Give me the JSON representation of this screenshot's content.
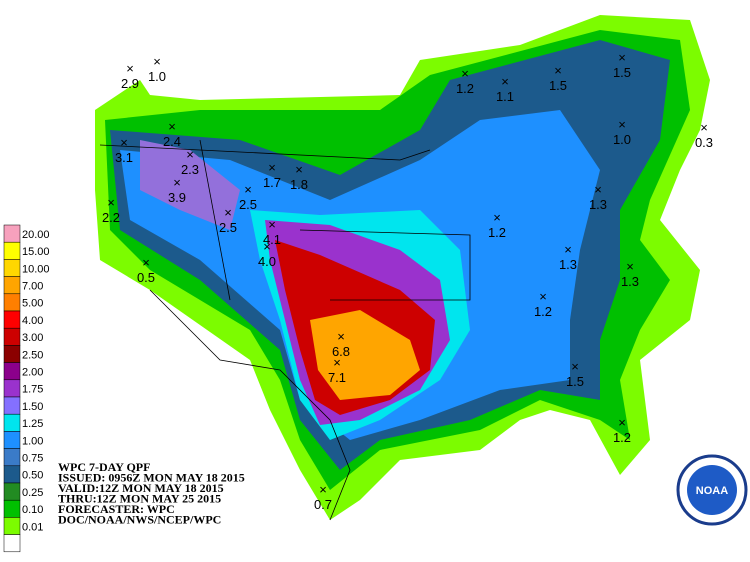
{
  "legend": {
    "items": [
      {
        "label": "20.00",
        "color": "#f7a1bd"
      },
      {
        "label": "15.00",
        "color": "#ffff00"
      },
      {
        "label": "10.00",
        "color": "#ffd700"
      },
      {
        "label": "7.00",
        "color": "#ffa500"
      },
      {
        "label": "5.00",
        "color": "#ff7f00"
      },
      {
        "label": "4.00",
        "color": "#ff0000"
      },
      {
        "label": "3.00",
        "color": "#cd0000"
      },
      {
        "label": "2.50",
        "color": "#8b0000"
      },
      {
        "label": "2.00",
        "color": "#8b008b"
      },
      {
        "label": "1.75",
        "color": "#9a32cd"
      },
      {
        "label": "1.50",
        "color": "#8470ff"
      },
      {
        "label": "1.25",
        "color": "#00e5ee"
      },
      {
        "label": "1.00",
        "color": "#1e90ff"
      },
      {
        "label": "0.75",
        "color": "#3a7bc8"
      },
      {
        "label": "0.50",
        "color": "#1c5a8c"
      },
      {
        "label": "0.25",
        "color": "#228b22"
      },
      {
        "label": "0.10",
        "color": "#00c000"
      },
      {
        "label": "0.01",
        "color": "#7cfc00"
      }
    ]
  },
  "info": {
    "lines": [
      "WPC 7-DAY QPF",
      "ISSUED: 0956Z MON MAY 18 2015",
      "VALID:12Z MON MAY 18 2015",
      "THRU:12Z MON MAY 25 2015",
      "FORECASTER: WPC",
      "DOC/NOAA/NWS/NCEP/WPC"
    ]
  },
  "logo": {
    "text": "NOAA"
  },
  "points": [
    "2.9",
    "1.0",
    "1.2",
    "1.1",
    "1.5",
    "1.5",
    "0.3",
    "1.0",
    "3.1",
    "2.4",
    "2.3",
    "3.9",
    "1.7",
    "1.8",
    "2.5",
    "2.2",
    "2.5",
    "4.1",
    "4.0",
    "0.5",
    "1.2",
    "1.3",
    "1.3",
    "1.3",
    "1.2",
    "6.8",
    "7.1",
    "1.5",
    "1.2",
    "0.7"
  ]
}
